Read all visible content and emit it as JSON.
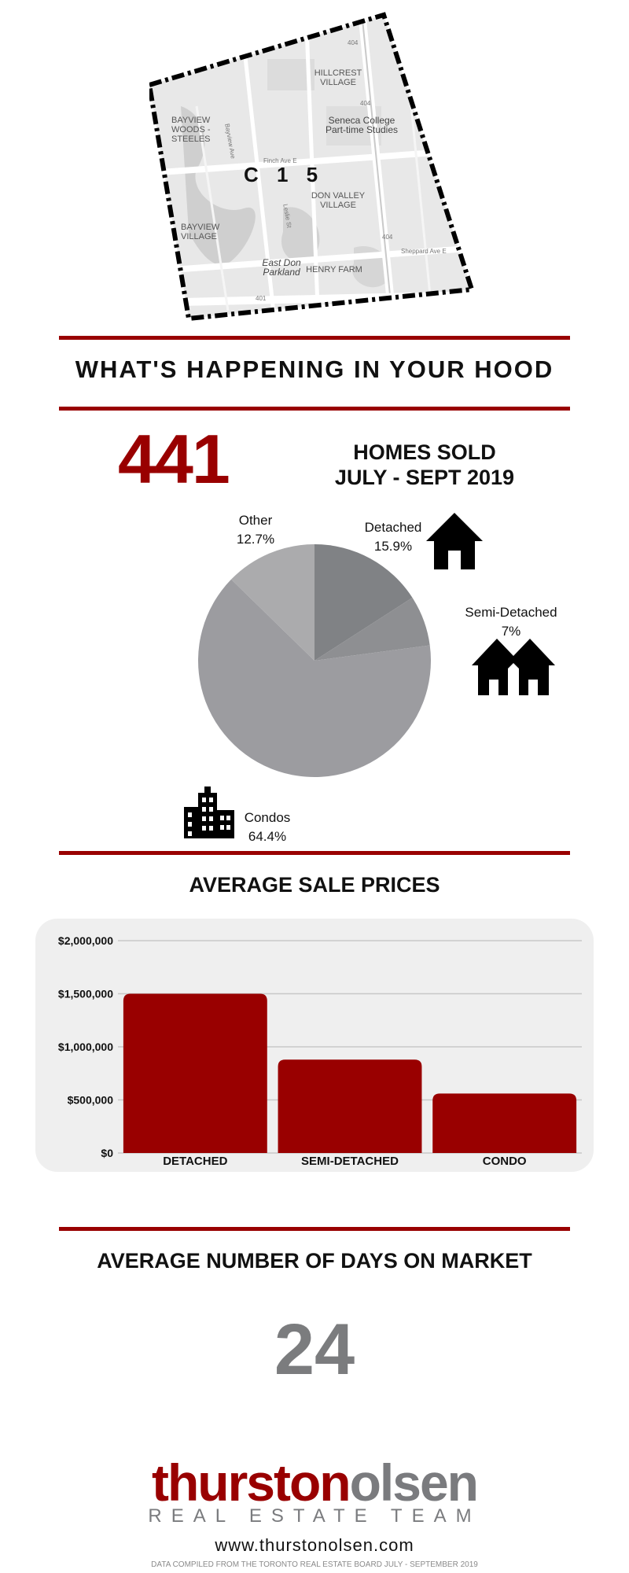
{
  "map": {
    "district": "C 1 5",
    "labels": [
      "HILLCREST VILLAGE",
      "BAYVIEW WOODS - STEELES",
      "Seneca College Part-time Studies",
      "DON VALLEY VILLAGE",
      "BAYVIEW VILLAGE",
      "East Don Parkland",
      "HENRY FARM"
    ],
    "road_labels": [
      "404",
      "404",
      "404",
      "401",
      "Finch Ave E",
      "Sheppard Ave E",
      "Leslie St",
      "Bayview Ave"
    ]
  },
  "headline": "WHAT'S HAPPENING IN YOUR HOOD",
  "homes_sold": {
    "count": "441",
    "line1": "HOMES SOLD",
    "line2": "JULY - SEPT 2019"
  },
  "pie": {
    "slices": [
      {
        "name": "Detached",
        "pct_label": "15.9%",
        "value": 15.9,
        "color": "#808285",
        "icon": "house-icon"
      },
      {
        "name": "Semi-Detached",
        "pct_label": "7%",
        "value": 7.0,
        "color": "#8e8f92",
        "icon": "semi-detached-icon"
      },
      {
        "name": "Condos",
        "pct_label": "64.4%",
        "value": 64.4,
        "color": "#9c9ca0",
        "icon": "condo-building-icon"
      },
      {
        "name": "Other",
        "pct_label": "12.7%",
        "value": 12.7,
        "color": "#ababad",
        "icon": ""
      }
    ]
  },
  "prices_title": "AVERAGE SALE PRICES",
  "chart_data": [
    {
      "type": "pie",
      "categories": [
        "Detached",
        "Semi-Detached",
        "Condos",
        "Other"
      ],
      "values": [
        15.9,
        7,
        64.4,
        12.7
      ],
      "title": "",
      "unit": "%"
    },
    {
      "type": "bar",
      "title": "AVERAGE SALE PRICES",
      "categories": [
        "DETACHED",
        "SEMI-DETACHED",
        "CONDO"
      ],
      "values": [
        1500000,
        880000,
        560000
      ],
      "ylim": [
        0,
        2000000
      ],
      "yticks": [
        0,
        500000,
        1000000,
        1500000,
        2000000
      ],
      "ytick_labels": [
        "$0",
        "$500,000",
        "$1,000,000",
        "$1,500,000",
        "$2,000,000"
      ],
      "xlabel": "",
      "ylabel": "",
      "grid": true,
      "bar_color": "#990000"
    }
  ],
  "days_title": "AVERAGE NUMBER OF DAYS ON MARKET",
  "days_value": "24",
  "brand": {
    "part1": "thurston",
    "part2": "olsen",
    "tagline": "REAL ESTATE TEAM",
    "url": "www.thurstonolsen.com",
    "source_note": "DATA COMPILED FROM THE TORONTO REAL ESTATE BOARD JULY - SEPTEMBER 2019"
  },
  "colors": {
    "accent": "#990000",
    "muted": "#7b7c7e"
  }
}
